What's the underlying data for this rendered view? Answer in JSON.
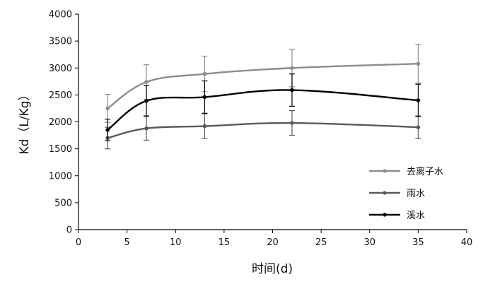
{
  "chart_data": {
    "type": "line",
    "xlabel": "时间(d)",
    "ylabel": "Kd（L/Kg）",
    "xlim": [
      0,
      40
    ],
    "ylim": [
      0,
      4000
    ],
    "x_ticks": [
      0,
      5,
      10,
      15,
      20,
      25,
      30,
      35,
      40
    ],
    "y_ticks": [
      0,
      500,
      1000,
      1500,
      2000,
      2500,
      3000,
      3500,
      4000
    ],
    "grid": false,
    "legend_position": "right",
    "series": [
      {
        "name": "去离子水",
        "color": "#8c8c8c",
        "x": [
          3,
          7,
          13,
          22,
          35
        ],
        "y": [
          2250,
          2740,
          2890,
          3000,
          3080
        ],
        "error": [
          260,
          320,
          330,
          350,
          360
        ]
      },
      {
        "name": "雨水",
        "color": "#5a5a5a",
        "x": [
          3,
          7,
          13,
          22,
          35
        ],
        "y": [
          1700,
          1880,
          1920,
          1980,
          1900
        ],
        "error": [
          200,
          220,
          230,
          230,
          210
        ]
      },
      {
        "name": "溪水",
        "color": "#000000",
        "x": [
          3,
          7,
          13,
          22,
          35
        ],
        "y": [
          1850,
          2390,
          2460,
          2590,
          2400
        ],
        "error": [
          200,
          280,
          300,
          300,
          300
        ]
      }
    ]
  }
}
